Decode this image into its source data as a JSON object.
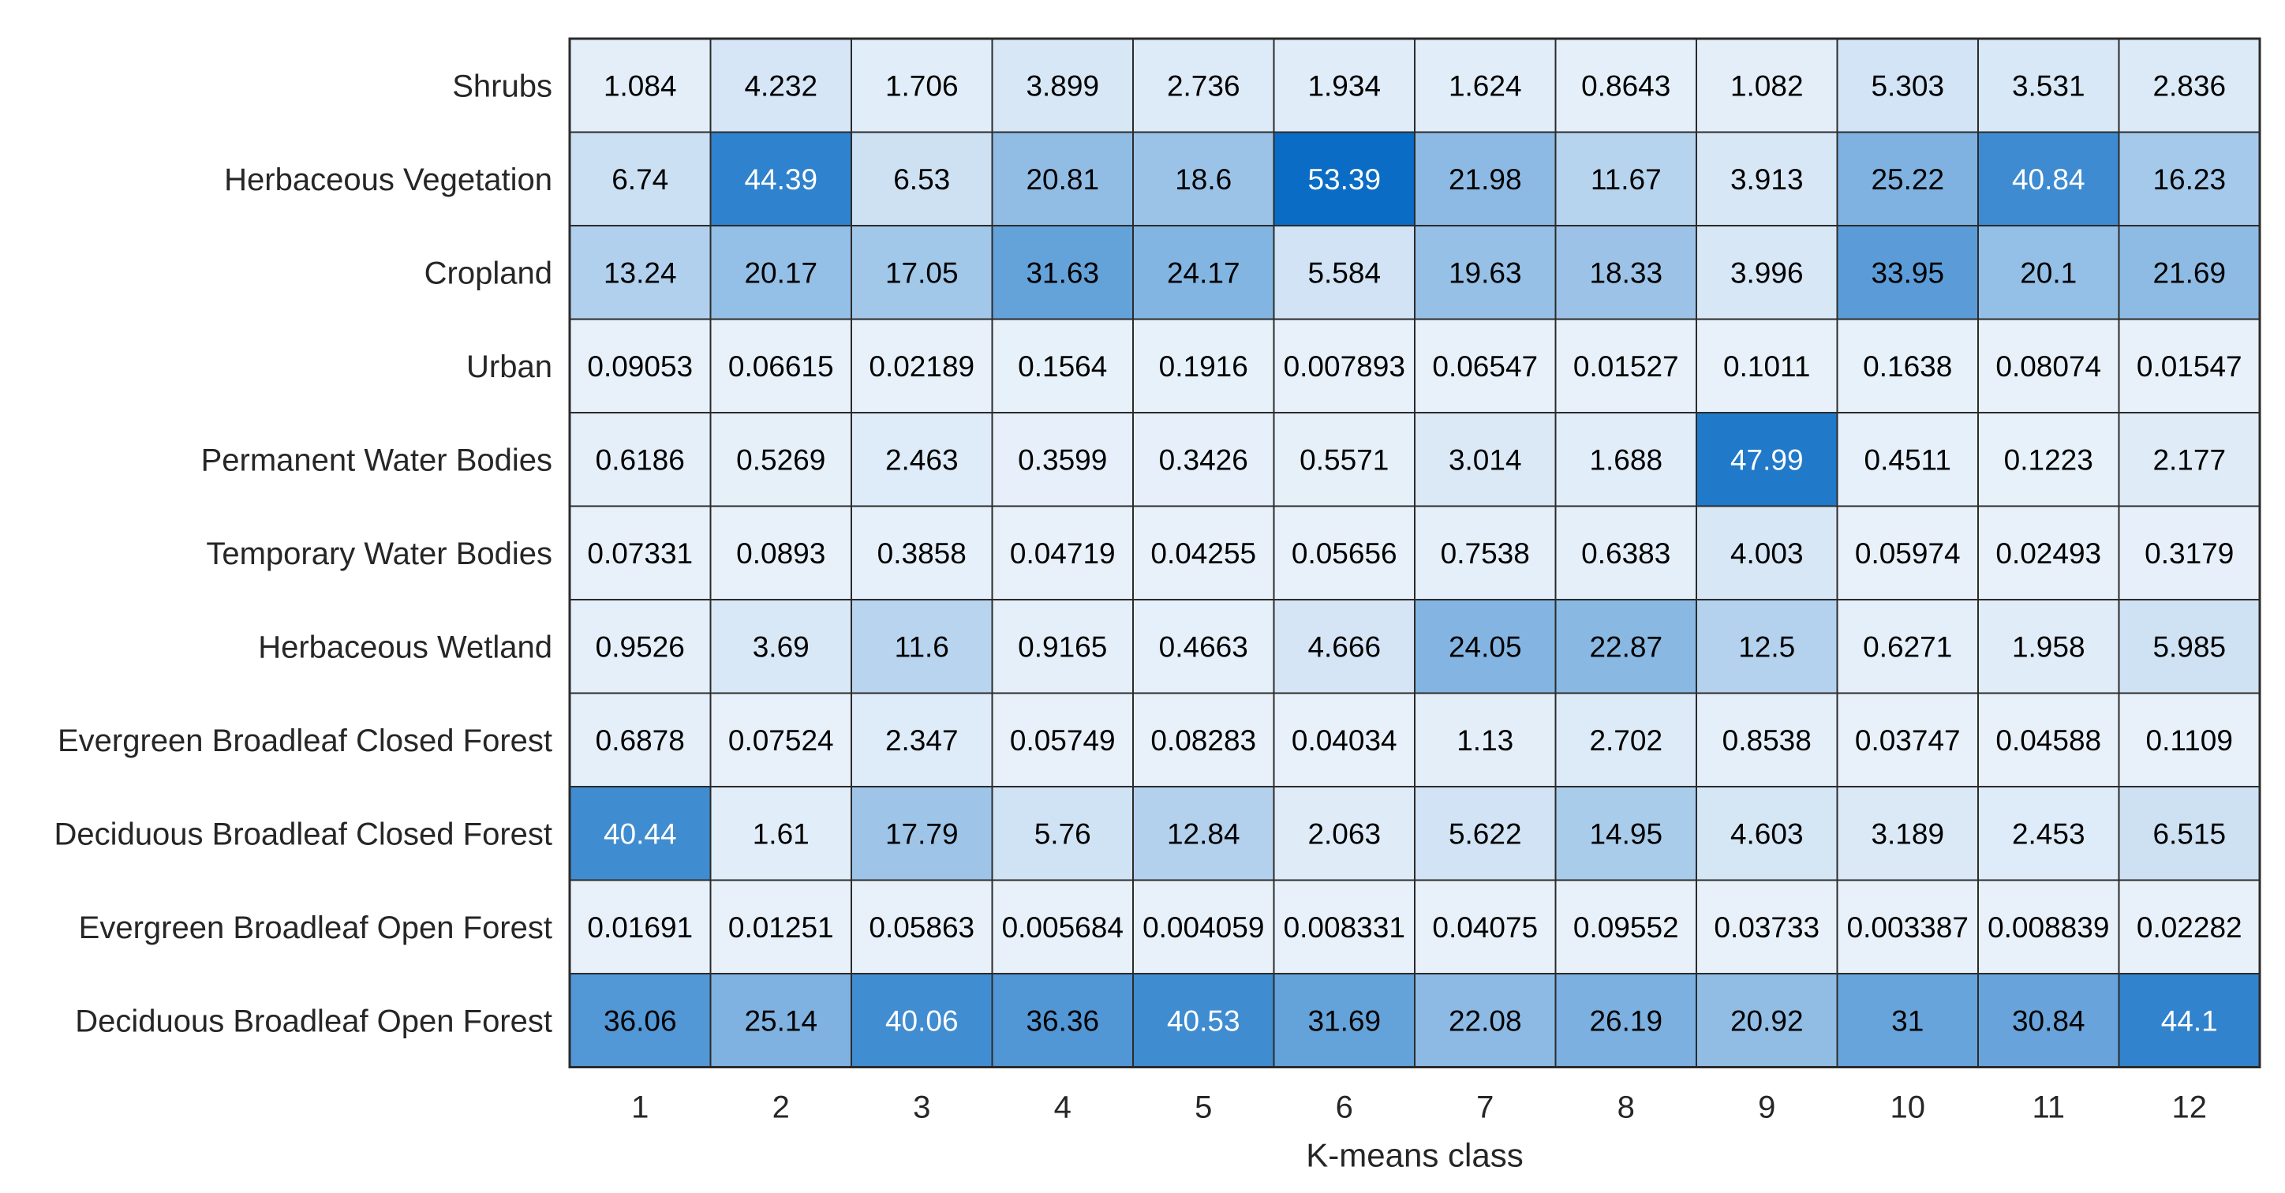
{
  "chart_data": {
    "type": "heatmap",
    "title": "",
    "xlabel": "K-means class",
    "ylabel": "",
    "x_categories": [
      "1",
      "2",
      "3",
      "4",
      "5",
      "6",
      "7",
      "8",
      "9",
      "10",
      "11",
      "12"
    ],
    "y_categories": [
      "Shrubs",
      "Herbaceous Vegetation",
      "Cropland",
      "Urban",
      "Permanent Water Bodies",
      "Temporary Water Bodies",
      "Herbaceous Wetland",
      "Evergreen Broadleaf Closed Forest",
      "Deciduous Broadleaf Closed Forest",
      "Evergreen Broadleaf Open Forest",
      "Deciduous Broadleaf Open Forest"
    ],
    "values": [
      [
        "1.084",
        "4.232",
        "1.706",
        "3.899",
        "2.736",
        "1.934",
        "1.624",
        "0.8643",
        "1.082",
        "5.303",
        "3.531",
        "2.836"
      ],
      [
        "6.74",
        "44.39",
        "6.53",
        "20.81",
        "18.6",
        "53.39",
        "21.98",
        "11.67",
        "3.913",
        "25.22",
        "40.84",
        "16.23"
      ],
      [
        "13.24",
        "20.17",
        "17.05",
        "31.63",
        "24.17",
        "5.584",
        "19.63",
        "18.33",
        "3.996",
        "33.95",
        "20.1",
        "21.69"
      ],
      [
        "0.09053",
        "0.06615",
        "0.02189",
        "0.1564",
        "0.1916",
        "0.007893",
        "0.06547",
        "0.01527",
        "0.1011",
        "0.1638",
        "0.08074",
        "0.01547"
      ],
      [
        "0.6186",
        "0.5269",
        "2.463",
        "0.3599",
        "0.3426",
        "0.5571",
        "3.014",
        "1.688",
        "47.99",
        "0.4511",
        "0.1223",
        "2.177"
      ],
      [
        "0.07331",
        "0.0893",
        "0.3858",
        "0.04719",
        "0.04255",
        "0.05656",
        "0.7538",
        "0.6383",
        "4.003",
        "0.05974",
        "0.02493",
        "0.3179"
      ],
      [
        "0.9526",
        "3.69",
        "11.6",
        "0.9165",
        "0.4663",
        "4.666",
        "24.05",
        "22.87",
        "12.5",
        "0.6271",
        "1.958",
        "5.985"
      ],
      [
        "0.6878",
        "0.07524",
        "2.347",
        "0.05749",
        "0.08283",
        "0.04034",
        "1.13",
        "2.702",
        "0.8538",
        "0.03747",
        "0.04588",
        "0.1109"
      ],
      [
        "40.44",
        "1.61",
        "17.79",
        "5.76",
        "12.84",
        "2.063",
        "5.622",
        "14.95",
        "4.603",
        "3.189",
        "2.453",
        "6.515"
      ],
      [
        "0.01691",
        "0.01251",
        "0.05863",
        "0.005684",
        "0.004059",
        "0.008331",
        "0.04075",
        "0.09552",
        "0.03733",
        "0.003387",
        "0.008839",
        "0.02282"
      ],
      [
        "36.06",
        "25.14",
        "40.06",
        "36.36",
        "40.53",
        "31.69",
        "22.08",
        "26.19",
        "20.92",
        "31",
        "30.84",
        "44.1"
      ]
    ],
    "color_scale": {
      "low": "#e8f1fa",
      "high": "#0a6cc4",
      "value_range": [
        0,
        53.39
      ]
    },
    "grid": true,
    "legend": "none"
  }
}
